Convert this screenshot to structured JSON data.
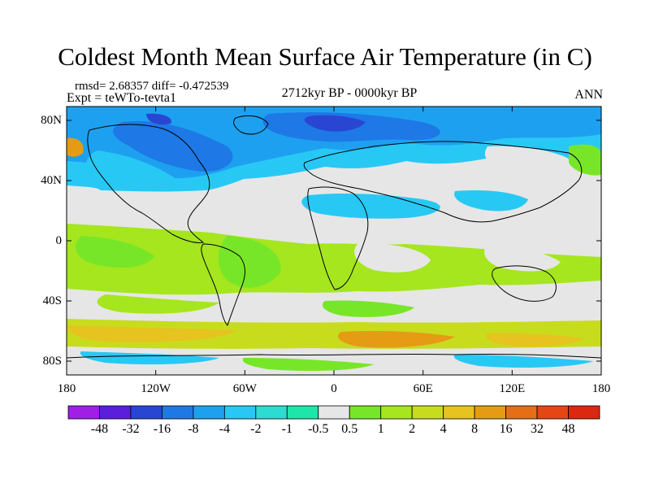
{
  "title": "Coldest Month Mean Surface Air Temperature (in C)",
  "stats_line": "rmsd= 2.68357 diff= -0.472539",
  "experiment_line": "Expt = teWTo-tevta1",
  "period_line": "2712kyr BP - 0000kyr BP",
  "season_label": "ANN",
  "latitude_ticks": [
    "80N",
    "40N",
    "0",
    "40S",
    "80S"
  ],
  "longitude_ticks": [
    "180",
    "120W",
    "60W",
    "0",
    "60E",
    "120E",
    "180"
  ],
  "colorbar": {
    "labels": [
      "-48",
      "-32",
      "-16",
      "-8",
      "-4",
      "-2",
      "-1",
      "-0.5",
      "0.5",
      "1",
      "2",
      "4",
      "8",
      "16",
      "32",
      "48"
    ],
    "colors": [
      "#a01ee6",
      "#5a1edc",
      "#2846d2",
      "#1e78e6",
      "#1ea0f0",
      "#28c8f5",
      "#2cdcd2",
      "#1ee6aa",
      "#e6e6e6",
      "#78e628",
      "#a5e61e",
      "#c8dc1e",
      "#e6c31e",
      "#e69b14",
      "#e66e14",
      "#e64614",
      "#dc280f"
    ]
  }
}
